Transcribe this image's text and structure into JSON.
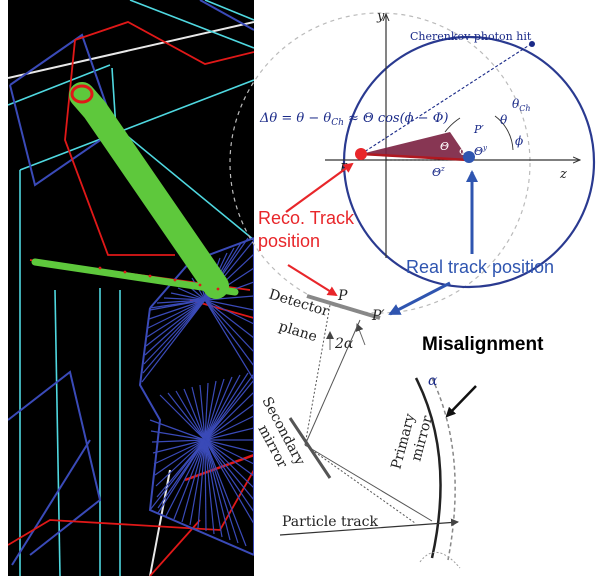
{
  "labels": {
    "axis_y": "y",
    "axis_z": "z",
    "cherenkov_hit": "Cherenkov photon hit",
    "theta": "θ",
    "theta_ch": "θ",
    "theta_ch_sub": "Ch",
    "phi": "ϕ",
    "big_theta_y": "Θ",
    "big_theta_y_sup": "y",
    "big_theta_z": "Θ",
    "big_theta_z_sup": "z",
    "big_theta": "Θ",
    "big_phi": "Φ",
    "point_p": "P",
    "point_p_prime": "P′",
    "delta_theta_formula": "Δθ = θ − θ",
    "delta_theta_formula_sub": "Ch",
    "delta_theta_formula_rest": " ≈ Θ cos(ϕ − Φ)",
    "reco_track_line1": "Reco. Track",
    "reco_track_line2": "position",
    "real_track": "Real track position",
    "detector_line1": "Detector",
    "detector_line2": "plane",
    "detector_p": "P",
    "detector_p_prime": "P′",
    "two_alpha": "2α",
    "secondary_line1": "Secondary",
    "secondary_line2": "mirror",
    "primary_line1": "Primary",
    "primary_line2": "mirror",
    "alpha": "α",
    "misalignment": "Misalignment",
    "particle_track": "Particle track"
  },
  "colors": {
    "event_background": "#000000",
    "detector_blue": "#3a4ab8",
    "detector_cyan": "#4fd8e0",
    "detector_red": "#e01818",
    "track_green": "#5ec83c",
    "reco_red": "#e8262a",
    "real_blue": "#2f55b0",
    "diagram_ink": "#333333",
    "formula_navy": "#1a2a88",
    "wedge_purple": "#7a2040"
  },
  "icons": {
    "reco_arrow": "red-arrow-icon",
    "real_arrow": "blue-arrow-icon",
    "misalignment_arrow": "black-arrow-icon"
  }
}
